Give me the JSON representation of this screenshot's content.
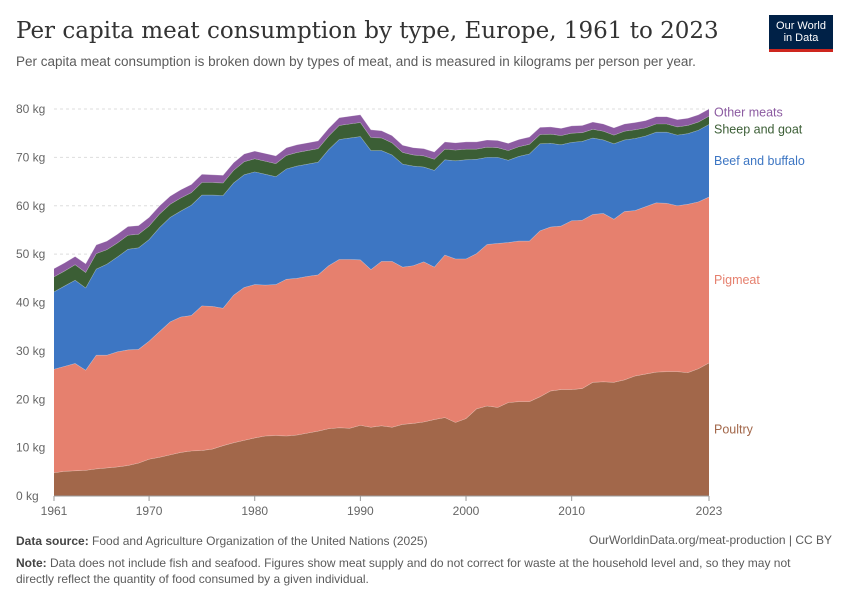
{
  "header": {
    "title": "Per capita meat consumption by type, Europe, 1961 to 2023",
    "subtitle": "Per capita meat consumption is broken down by types of meat, and is measured in kilograms per person per year.",
    "logo_line1": "Our World",
    "logo_line2": "in Data"
  },
  "footer": {
    "source_label": "Data source:",
    "source_text": "Food and Agriculture Organization of the United Nations (2025)",
    "url": "OurWorldinData.org/meat-production | CC BY",
    "note_label": "Note:",
    "note_text": "Data does not include fish and seafood. Figures show meat supply and do not correct for waste at the household level and, so they may not directly reflect the quantity of food consumed by a given individual."
  },
  "chart_data": {
    "type": "area",
    "stacked": true,
    "x": [
      1961,
      1962,
      1963,
      1964,
      1965,
      1966,
      1967,
      1968,
      1969,
      1970,
      1971,
      1972,
      1973,
      1974,
      1975,
      1976,
      1977,
      1978,
      1979,
      1980,
      1981,
      1982,
      1983,
      1984,
      1985,
      1986,
      1987,
      1988,
      1989,
      1990,
      1991,
      1992,
      1993,
      1994,
      1995,
      1996,
      1997,
      1998,
      1999,
      2000,
      2001,
      2002,
      2003,
      2004,
      2005,
      2006,
      2007,
      2008,
      2009,
      2010,
      2011,
      2012,
      2013,
      2014,
      2015,
      2016,
      2017,
      2018,
      2019,
      2020,
      2021,
      2022,
      2023
    ],
    "ylim": [
      0,
      80
    ],
    "y_ticks": [
      0,
      10,
      20,
      30,
      40,
      50,
      60,
      70,
      80
    ],
    "y_tick_labels": [
      "0 kg",
      "10 kg",
      "20 kg",
      "30 kg",
      "40 kg",
      "50 kg",
      "60 kg",
      "70 kg",
      "80 kg"
    ],
    "x_ticks": [
      1961,
      1970,
      1980,
      1990,
      2000,
      2010,
      2023
    ],
    "x_tick_labels": [
      "1961",
      "1970",
      "1980",
      "1990",
      "2000",
      "2010",
      "2023"
    ],
    "grid": "horizontal-dashed",
    "legend": "right, inline labels",
    "series": [
      {
        "name": "Poultry",
        "color": "#a2674a",
        "values": [
          4.8,
          5.1,
          5.2,
          5.3,
          5.6,
          5.8,
          6.0,
          6.3,
          6.8,
          7.6,
          8.0,
          8.5,
          9.0,
          9.3,
          9.4,
          9.7,
          10.4,
          11.0,
          11.5,
          12.0,
          12.4,
          12.5,
          12.4,
          12.6,
          13.0,
          13.4,
          13.9,
          14.1,
          14.0,
          14.6,
          14.2,
          14.5,
          14.2,
          14.8,
          15.0,
          15.3,
          15.8,
          16.2,
          15.2,
          16.0,
          18.0,
          18.6,
          18.3,
          19.3,
          19.5,
          19.5,
          20.5,
          21.7,
          22.0,
          22.0,
          22.2,
          23.5,
          23.6,
          23.5,
          24.0,
          24.8,
          25.2,
          25.6,
          25.7,
          25.7,
          25.5,
          26.3,
          27.5
        ]
      },
      {
        "name": "Pigmeat",
        "color": "#e6806e",
        "values": [
          21.4,
          21.7,
          22.2,
          20.7,
          23.5,
          23.3,
          23.8,
          23.9,
          23.5,
          24.4,
          26.0,
          27.5,
          28.0,
          28.0,
          29.9,
          29.5,
          28.4,
          30.5,
          31.6,
          31.7,
          31.2,
          31.2,
          32.4,
          32.4,
          32.4,
          32.3,
          33.7,
          34.8,
          34.9,
          34.2,
          32.6,
          34.0,
          34.3,
          32.5,
          32.6,
          33.1,
          31.5,
          33.6,
          33.8,
          33.0,
          32.1,
          33.4,
          33.9,
          33.1,
          33.2,
          33.2,
          34.3,
          33.9,
          33.8,
          34.9,
          34.8,
          34.7,
          34.8,
          33.7,
          34.8,
          34.2,
          34.6,
          35.0,
          34.8,
          34.3,
          34.8,
          34.5,
          34.3
        ]
      },
      {
        "name": "Beef and buffalo",
        "color": "#3d76c3",
        "values": [
          16.0,
          16.6,
          17.2,
          17.0,
          17.8,
          18.8,
          19.6,
          20.8,
          21.0,
          21.0,
          21.5,
          21.6,
          21.9,
          22.8,
          22.9,
          23.0,
          23.3,
          23.2,
          23.3,
          23.3,
          22.9,
          22.3,
          22.8,
          23.2,
          23.2,
          23.3,
          24.0,
          24.8,
          25.1,
          25.5,
          24.6,
          22.9,
          22.0,
          21.3,
          20.6,
          19.6,
          20.0,
          19.7,
          20.3,
          20.5,
          19.5,
          18.0,
          17.8,
          17.0,
          17.5,
          18.0,
          18.0,
          17.3,
          16.8,
          16.2,
          16.3,
          15.8,
          15.2,
          15.6,
          14.8,
          14.9,
          14.6,
          14.6,
          14.7,
          14.6,
          14.6,
          14.8,
          15.0
        ]
      },
      {
        "name": "Sheep and goat",
        "color": "#3b5e35",
        "values": [
          3.1,
          3.1,
          3.2,
          3.2,
          3.2,
          3.0,
          2.9,
          2.9,
          2.8,
          2.8,
          2.8,
          2.7,
          2.7,
          2.6,
          2.6,
          2.6,
          2.6,
          2.6,
          2.7,
          2.7,
          2.7,
          2.7,
          2.8,
          2.8,
          2.8,
          2.8,
          2.8,
          2.9,
          2.9,
          2.9,
          2.7,
          2.6,
          2.5,
          2.4,
          2.3,
          2.3,
          2.3,
          2.2,
          2.2,
          2.2,
          2.1,
          2.1,
          2.0,
          2.0,
          2.0,
          2.0,
          1.9,
          1.9,
          1.9,
          1.9,
          1.8,
          1.8,
          1.8,
          1.8,
          1.8,
          1.8,
          1.7,
          1.7,
          1.7,
          1.7,
          1.7,
          1.7,
          1.7
        ]
      },
      {
        "name": "Other meats",
        "color": "#8c5ba1",
        "values": [
          1.7,
          1.7,
          1.7,
          1.8,
          1.8,
          1.8,
          1.8,
          1.8,
          1.8,
          1.8,
          1.7,
          1.7,
          1.7,
          1.7,
          1.7,
          1.6,
          1.6,
          1.6,
          1.6,
          1.6,
          1.6,
          1.6,
          1.6,
          1.6,
          1.6,
          1.6,
          1.6,
          1.6,
          1.6,
          1.6,
          1.6,
          1.5,
          1.5,
          1.5,
          1.5,
          1.5,
          1.5,
          1.5,
          1.5,
          1.5,
          1.5,
          1.5,
          1.5,
          1.5,
          1.5,
          1.5,
          1.5,
          1.5,
          1.5,
          1.5,
          1.5,
          1.5,
          1.5,
          1.5,
          1.5,
          1.5,
          1.5,
          1.5,
          1.5,
          1.5,
          1.5,
          1.5,
          1.5
        ]
      }
    ]
  }
}
